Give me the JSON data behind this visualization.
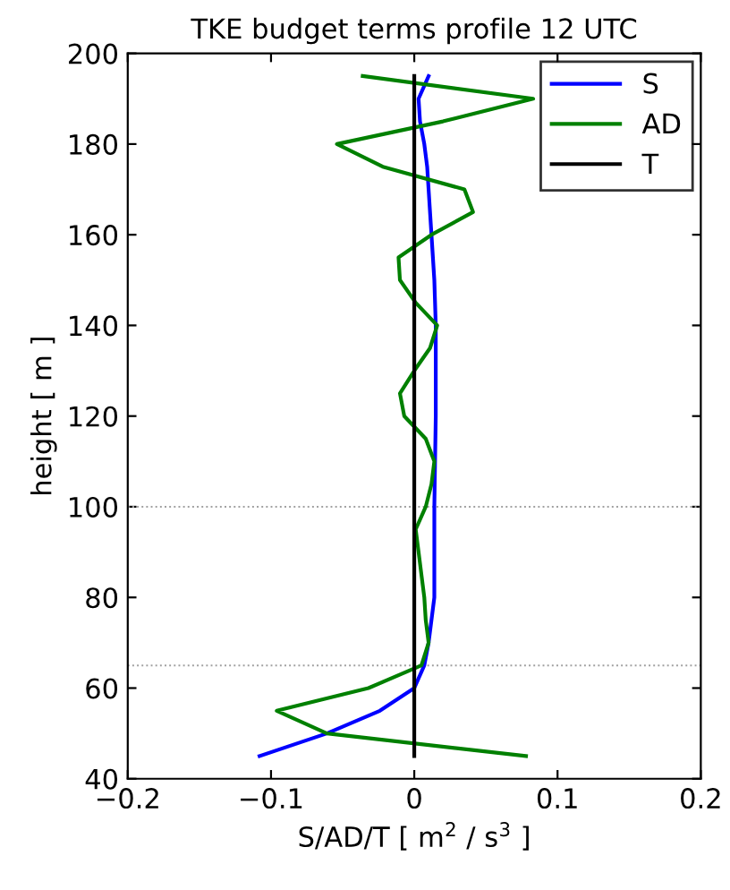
{
  "chart_data": {
    "type": "line",
    "title": "TKE budget terms profile 12 UTC",
    "xlabel": "S/AD/T [ m$^{2}$ / s$^{3}$ ]",
    "ylabel": "height [ m ]",
    "xlim": [
      -0.2,
      0.2
    ],
    "xticks": [
      {
        "value": -0.2,
        "label": "−0.2"
      },
      {
        "value": -0.1,
        "label": "−0.1"
      },
      0,
      0.1,
      0.2
    ],
    "ylim": [
      40,
      200
    ],
    "yticks": [
      40,
      60,
      80,
      100,
      120,
      140,
      160,
      180,
      200
    ],
    "legend": "top right",
    "grid": false,
    "line_style": "solid",
    "marker": "none",
    "ref_lines": [
      {
        "axis": "y",
        "value": 100,
        "color": "#a0a0a0",
        "line_style": "dotted"
      },
      {
        "axis": "y",
        "value": 65,
        "color": "#a0a0a0",
        "line_style": "dotted"
      }
    ],
    "series": [
      {
        "name": "S",
        "color": "#0000ff",
        "x": [
          -0.108,
          -0.061,
          -0.024,
          0,
          0.007,
          0.01,
          0.014,
          0.014,
          0.015,
          0.015,
          0.014,
          0.012,
          0.01,
          0.009,
          0.007,
          0.004,
          0.003,
          0.01
        ],
        "values": [
          45,
          50,
          55,
          60,
          65,
          70,
          80,
          100,
          120,
          140,
          150,
          160,
          170,
          175,
          180,
          185,
          190,
          195
        ]
      },
      {
        "name": "AD",
        "color": "#008000",
        "x": [
          0.078,
          -0.061,
          -0.096,
          -0.032,
          0.005,
          0.01,
          0.008,
          0.007,
          0.005,
          0.003,
          0.001,
          0.008,
          0.012,
          0.014,
          0.008,
          -0.007,
          -0.01,
          0,
          0.011,
          0.016,
          0.001,
          -0.01,
          -0.011,
          0.012,
          0.041,
          0.035,
          -0.022,
          -0.054,
          0.02,
          0.083,
          -0.036
        ],
        "values": [
          45,
          50,
          55,
          60,
          65,
          70,
          75,
          80,
          85,
          90,
          95,
          100,
          105,
          110,
          115,
          120,
          125,
          130,
          135,
          140,
          145,
          150,
          155,
          160,
          165,
          170,
          175,
          180,
          185,
          190,
          195
        ]
      },
      {
        "name": "T",
        "color": "#000000",
        "x": [
          0,
          0
        ],
        "values": [
          45,
          195
        ]
      }
    ]
  }
}
